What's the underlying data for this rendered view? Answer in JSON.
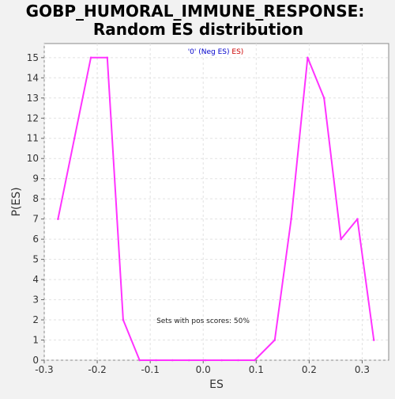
{
  "chart_data": {
    "type": "line",
    "title": [
      "GOBP_HUMORAL_IMMUNE_RESPONSE:",
      "Random ES distribution"
    ],
    "xlabel": "ES",
    "ylabel": "P(ES)",
    "xlim": [
      -0.3,
      0.35
    ],
    "ylim": [
      0,
      15.7
    ],
    "x_ticks": [
      -0.3,
      -0.2,
      -0.1,
      0.0,
      0.1,
      0.2,
      0.3
    ],
    "x_tick_labels": [
      "-0.3",
      "-0.2",
      "-0.1",
      "0.0",
      "0.1",
      "0.2",
      "0.3"
    ],
    "y_ticks": [
      0,
      1,
      2,
      3,
      4,
      5,
      6,
      7,
      8,
      9,
      10,
      11,
      12,
      13,
      14,
      15
    ],
    "y_tick_labels": [
      "0",
      "1",
      "2",
      "3",
      "4",
      "5",
      "6",
      "7",
      "8",
      "9",
      "10",
      "11",
      "12",
      "13",
      "14",
      "15"
    ],
    "grid": true,
    "legend": {
      "position": "top-center",
      "parts": [
        {
          "text": "'0' (Neg ES)",
          "color": "#0000cc"
        },
        {
          "text": " ES)",
          "color": "#cc0000"
        }
      ]
    },
    "annotation": "Sets with pos scores: 50%",
    "series": [
      {
        "color": "#ff33ff",
        "x": [
          -0.274,
          -0.243,
          -0.212,
          -0.181,
          -0.151,
          -0.12,
          -0.089,
          -0.058,
          -0.027,
          0.004,
          0.035,
          0.066,
          0.097,
          0.135,
          0.166,
          0.197,
          0.228,
          0.26,
          0.291,
          0.322
        ],
        "y": [
          7,
          11,
          15,
          15,
          2,
          0,
          0,
          0,
          0,
          0,
          0,
          0,
          0,
          1,
          7,
          15,
          13,
          6,
          7,
          1
        ]
      }
    ]
  }
}
